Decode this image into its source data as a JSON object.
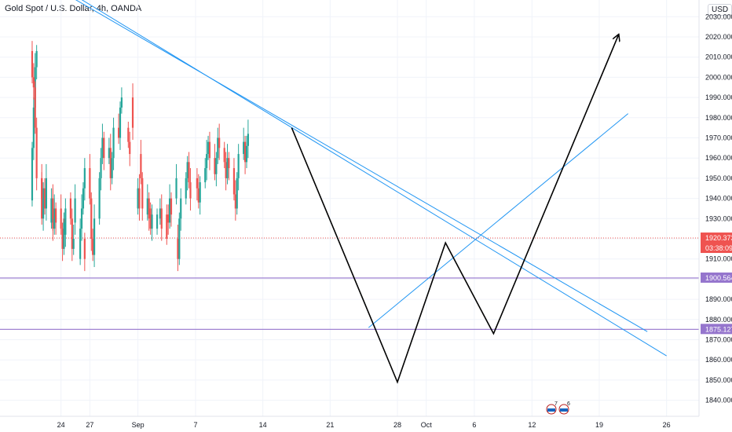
{
  "header": {
    "title": "Gold Spot / U.S. Dollar, 4h, OANDA",
    "currency": "USD"
  },
  "colors": {
    "up": "#26a69a",
    "down": "#ef5350",
    "trend": "#2196f3",
    "level": "#9575cd",
    "pattern": "#000000",
    "current": "#ef5350"
  },
  "events": [
    {
      "label": "7"
    },
    {
      "label": "6"
    }
  ],
  "chart_data": {
    "type": "candlestick",
    "title": "",
    "xlabel": "",
    "ylabel": "",
    "ylim": [
      1834,
      2034
    ],
    "grid": true,
    "y_ticks": [
      1840,
      1850,
      1860,
      1870,
      1880,
      1890,
      1900,
      1910,
      1920,
      1930,
      1940,
      1950,
      1960,
      1970,
      1980,
      1990,
      2000,
      2010,
      2020,
      2030
    ],
    "y_tick_labels": [
      "1840.000",
      "1850.000",
      "1860.000",
      "1870.000",
      "1880.000",
      "1890.000",
      "1900.000",
      "1910.000",
      "1920.000",
      "1930.000",
      "1940.000",
      "1950.000",
      "1960.000",
      "1970.000",
      "1980.000",
      "1990.000",
      "2000.000",
      "2010.000",
      "2020.000",
      "2030.000"
    ],
    "x_ticks": [
      {
        "label": "24",
        "date": "2020-08-24"
      },
      {
        "label": "27",
        "date": "2020-08-27"
      },
      {
        "label": "Sep",
        "date": "2020-09-01"
      },
      {
        "label": "7",
        "date": "2020-09-07"
      },
      {
        "label": "14",
        "date": "2020-09-14"
      },
      {
        "label": "21",
        "date": "2020-09-21"
      },
      {
        "label": "28",
        "date": "2020-09-28"
      },
      {
        "label": "Oct",
        "date": "2020-10-01"
      },
      {
        "label": "6",
        "date": "2020-10-06"
      },
      {
        "label": "12",
        "date": "2020-10-12"
      },
      {
        "label": "19",
        "date": "2020-10-19"
      },
      {
        "label": "26",
        "date": "2020-10-26"
      }
    ],
    "price_labels": [
      {
        "value": 1920.373,
        "text": "1920.373",
        "sub": "03:38:09",
        "kind": "current"
      },
      {
        "value": 1900.564,
        "text": "1900.564",
        "kind": "level"
      },
      {
        "value": 1875.127,
        "text": "1875.127",
        "kind": "level"
      }
    ],
    "horizontal_levels": [
      1900.564,
      1875.127
    ],
    "trendlines": [
      {
        "from": {
          "date": "2020-08-17",
          "price": 2062
        },
        "to": {
          "date": "2020-10-24",
          "price": 1874
        }
      },
      {
        "from": {
          "date": "2020-08-17",
          "price": 2065
        },
        "to": {
          "date": "2020-10-26",
          "price": 1862
        }
      },
      {
        "from": {
          "date": "2020-09-25",
          "price": 1876
        },
        "to": {
          "date": "2020-10-22",
          "price": 1982
        }
      }
    ],
    "pattern_path": [
      {
        "date": "2020-09-17",
        "price": 1975
      },
      {
        "date": "2020-09-28",
        "price": 1849
      },
      {
        "date": "2020-10-03",
        "price": 1918
      },
      {
        "date": "2020-10-08",
        "price": 1873
      },
      {
        "date": "2020-10-21",
        "price": 2021
      }
    ],
    "candles": [
      [
        "2020-08-21",
        1939,
        1965
      ],
      [
        "2020-08-21",
        1965,
        1985
      ],
      [
        "2020-08-21",
        1985,
        2005
      ],
      [
        "2020-08-21",
        2005,
        2013
      ],
      [
        "2020-08-21",
        2013,
        2000
      ],
      [
        "2020-08-21",
        2000,
        1995
      ],
      [
        "2020-08-21",
        1995,
        1975
      ],
      [
        "2020-08-21",
        1975,
        1950
      ],
      [
        "2020-08-22",
        1950,
        1930
      ],
      [
        "2020-08-22",
        1930,
        1945
      ],
      [
        "2020-08-22",
        1945,
        1935
      ],
      [
        "2020-08-22",
        1935,
        1950
      ],
      [
        "2020-08-22",
        1950,
        1940
      ],
      [
        "2020-08-23",
        1940,
        1925
      ],
      [
        "2020-08-23",
        1925,
        1935
      ],
      [
        "2020-08-23",
        1935,
        1928
      ],
      [
        "2020-08-23",
        1928,
        1940
      ],
      [
        "2020-08-23",
        1940,
        1930
      ],
      [
        "2020-08-24",
        1930,
        1922
      ],
      [
        "2020-08-24",
        1922,
        1935
      ],
      [
        "2020-08-24",
        1935,
        1925
      ],
      [
        "2020-08-24",
        1925,
        1915
      ],
      [
        "2020-08-24",
        1915,
        1928
      ],
      [
        "2020-08-25",
        1928,
        1940
      ],
      [
        "2020-08-25",
        1940,
        1930
      ],
      [
        "2020-08-25",
        1930,
        1915
      ],
      [
        "2020-08-25",
        1915,
        1920
      ],
      [
        "2020-08-26",
        1920,
        1910
      ],
      [
        "2020-08-26",
        1910,
        1925
      ],
      [
        "2020-08-26",
        1925,
        1935
      ],
      [
        "2020-08-26",
        1935,
        1945
      ],
      [
        "2020-08-26",
        1945,
        1955
      ],
      [
        "2020-08-27",
        1955,
        1940
      ],
      [
        "2020-08-27",
        1940,
        1920
      ],
      [
        "2020-08-27",
        1920,
        1912
      ],
      [
        "2020-08-27",
        1912,
        1930
      ],
      [
        "2020-08-28",
        1930,
        1950
      ],
      [
        "2020-08-28",
        1950,
        1960
      ],
      [
        "2020-08-28",
        1960,
        1970
      ],
      [
        "2020-08-28",
        1970,
        1960
      ],
      [
        "2020-08-29",
        1960,
        1965
      ],
      [
        "2020-08-29",
        1965,
        1950
      ],
      [
        "2020-08-29",
        1950,
        1960
      ],
      [
        "2020-08-29",
        1960,
        1975
      ],
      [
        "2020-08-30",
        1975,
        1970
      ],
      [
        "2020-08-30",
        1970,
        1985
      ],
      [
        "2020-08-30",
        1985,
        1990
      ],
      [
        "2020-08-31",
        1990,
        1975
      ],
      [
        "2020-08-31",
        1975,
        1968
      ],
      [
        "2020-08-31",
        1968,
        1962
      ],
      [
        "2020-09-01",
        1962,
        1950
      ],
      [
        "2020-09-01",
        1950,
        1935
      ],
      [
        "2020-09-01",
        1935,
        1945
      ],
      [
        "2020-09-01",
        1945,
        1935
      ],
      [
        "2020-09-02",
        1935,
        1925
      ],
      [
        "2020-09-02",
        1925,
        1932
      ],
      [
        "2020-09-02",
        1932,
        1940
      ],
      [
        "2020-09-02",
        1940,
        1930
      ],
      [
        "2020-09-03",
        1930,
        1935
      ],
      [
        "2020-09-03",
        1935,
        1925
      ],
      [
        "2020-09-03",
        1925,
        1932
      ],
      [
        "2020-09-04",
        1932,
        1928
      ],
      [
        "2020-09-04",
        1928,
        1940
      ],
      [
        "2020-09-04",
        1940,
        1932
      ],
      [
        "2020-09-04",
        1932,
        1920
      ],
      [
        "2020-09-05",
        1920,
        1910
      ],
      [
        "2020-09-05",
        1910,
        1930
      ],
      [
        "2020-09-05",
        1930,
        1940
      ],
      [
        "2020-09-05",
        1940,
        1950
      ],
      [
        "2020-09-06",
        1950,
        1958
      ],
      [
        "2020-09-06",
        1958,
        1948
      ],
      [
        "2020-09-06",
        1948,
        1940
      ],
      [
        "2020-09-06",
        1940,
        1950
      ],
      [
        "2020-09-07",
        1950,
        1945
      ],
      [
        "2020-09-07",
        1945,
        1938
      ],
      [
        "2020-09-07",
        1938,
        1948
      ],
      [
        "2020-09-08",
        1948,
        1955
      ],
      [
        "2020-09-08",
        1955,
        1962
      ],
      [
        "2020-09-08",
        1962,
        1968
      ],
      [
        "2020-09-08",
        1968,
        1960
      ],
      [
        "2020-09-09",
        1960,
        1952
      ],
      [
        "2020-09-09",
        1952,
        1960
      ],
      [
        "2020-09-09",
        1960,
        1970
      ],
      [
        "2020-09-09",
        1970,
        1965
      ],
      [
        "2020-09-10",
        1965,
        1958
      ],
      [
        "2020-09-10",
        1958,
        1950
      ],
      [
        "2020-09-10",
        1950,
        1960
      ],
      [
        "2020-09-10",
        1960,
        1955
      ],
      [
        "2020-09-11",
        1955,
        1942
      ],
      [
        "2020-09-11",
        1942,
        1935
      ],
      [
        "2020-09-11",
        1935,
        1950
      ],
      [
        "2020-09-11",
        1950,
        1962
      ],
      [
        "2020-09-12",
        1962,
        1968
      ],
      [
        "2020-09-12",
        1968,
        1958
      ],
      [
        "2020-09-12",
        1958,
        1966
      ],
      [
        "2020-09-12",
        1966,
        1972
      ]
    ]
  }
}
